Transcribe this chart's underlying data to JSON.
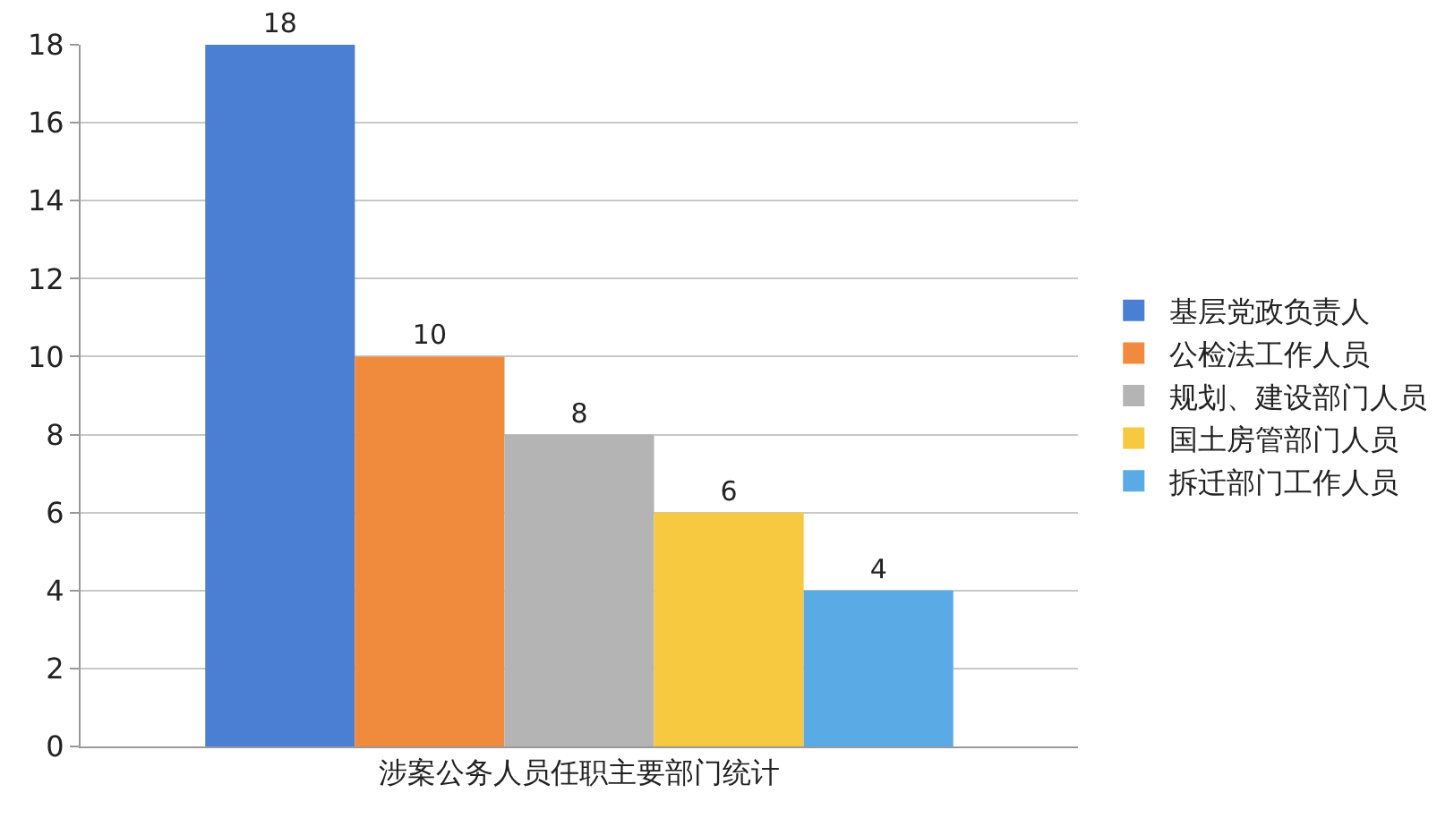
{
  "chart_data": {
    "type": "bar",
    "categories": [
      "涉案公务人员任职主要部门统计"
    ],
    "series": [
      {
        "name": "基层党政负责人",
        "color": "#4a7fd4",
        "values": [
          18
        ]
      },
      {
        "name": "公检法工作人员",
        "color": "#f08a3c",
        "values": [
          10
        ]
      },
      {
        "name": "规划、建设部门人员",
        "color": "#b4b4b4",
        "values": [
          8
        ]
      },
      {
        "name": "国土房管部门人员",
        "color": "#f7c940",
        "values": [
          6
        ]
      },
      {
        "name": "拆迁部门工作人员",
        "color": "#5aaae6",
        "values": [
          4
        ]
      }
    ],
    "ylim": [
      0,
      18
    ],
    "yticks": [
      0,
      2,
      4,
      6,
      8,
      10,
      12,
      14,
      16,
      18
    ],
    "grid": "y",
    "legend": "right",
    "data_labels": true
  }
}
